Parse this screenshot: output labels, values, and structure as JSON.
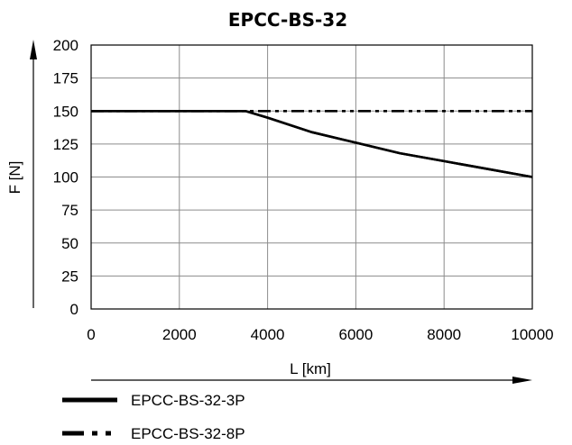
{
  "chart_data": {
    "type": "line",
    "title": "EPCC-BS-32",
    "xlabel": "L [km]",
    "ylabel": "F [N]",
    "xlim": [
      0,
      10000
    ],
    "ylim": [
      0,
      200
    ],
    "xticks": [
      0,
      2000,
      4000,
      6000,
      8000,
      10000
    ],
    "yticks": [
      0,
      25,
      50,
      75,
      100,
      125,
      150,
      175,
      200
    ],
    "grid": true,
    "legend_position": "bottom-left",
    "series": [
      {
        "name": "EPCC-BS-32-3P",
        "style": "solid",
        "color": "#000000",
        "x": [
          0,
          3500,
          4000,
          5000,
          6000,
          7000,
          8000,
          9000,
          10000
        ],
        "y": [
          150,
          150,
          145,
          134,
          126,
          118,
          112,
          106,
          100
        ]
      },
      {
        "name": "EPCC-BS-32-8P",
        "style": "dash-dot-dot",
        "color": "#000000",
        "x": [
          0,
          10000
        ],
        "y": [
          150,
          150
        ]
      }
    ]
  }
}
